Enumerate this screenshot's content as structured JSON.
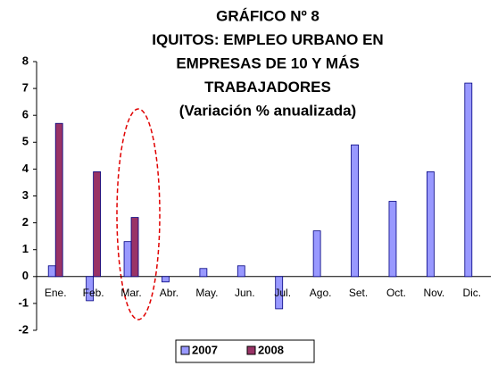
{
  "chart_data": {
    "type": "bar",
    "title": [
      "GRÁFICO Nº 8",
      "IQUITOS: EMPLEO URBANO EN",
      "EMPRESAS DE 10 Y MÁS",
      "TRABAJADORES",
      "(Variación % anualizada)"
    ],
    "categories": [
      "Ene.",
      "Feb.",
      "Mar.",
      "Abr.",
      "May.",
      "Jun.",
      "Jul.",
      "Ago.",
      "Set.",
      "Oct.",
      "Nov.",
      "Dic."
    ],
    "series": [
      {
        "name": "2007",
        "color": "#9999ff",
        "values": [
          0.4,
          -0.9,
          1.3,
          -0.2,
          0.3,
          0.4,
          -1.2,
          1.7,
          4.9,
          2.8,
          3.9,
          7.2
        ]
      },
      {
        "name": "2008",
        "color": "#993366",
        "values": [
          5.7,
          3.9,
          2.2,
          null,
          null,
          null,
          null,
          null,
          null,
          null,
          null,
          null
        ]
      }
    ],
    "ylim": [
      -2,
      8
    ],
    "yticks": [
      -2,
      -1,
      0,
      1,
      2,
      3,
      4,
      5,
      6,
      7,
      8
    ],
    "legend": "bottom"
  }
}
